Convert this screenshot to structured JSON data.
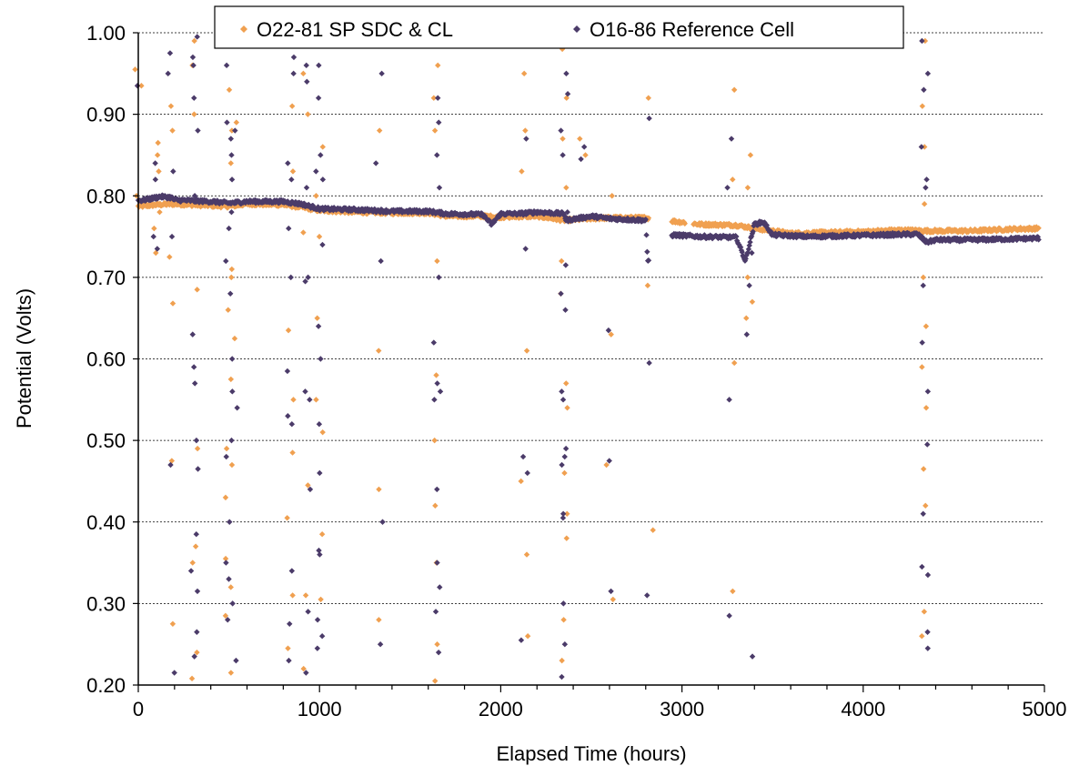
{
  "chart_data": {
    "type": "scatter",
    "title": "",
    "xlabel": "Elapsed Time (hours)",
    "ylabel": "Potential (Volts)",
    "xlim": [
      0,
      5000
    ],
    "ylim": [
      0.2,
      1.0
    ],
    "x_ticks": [
      0,
      1000,
      2000,
      3000,
      4000,
      5000
    ],
    "x_tick_labels": [
      "0",
      "1000",
      "2000",
      "3000",
      "4000",
      "5000"
    ],
    "y_ticks": [
      0.2,
      0.3,
      0.4,
      0.5,
      0.6,
      0.7,
      0.8,
      0.9,
      1.0
    ],
    "y_tick_labels": [
      "0.20",
      "0.30",
      "0.40",
      "0.50",
      "0.60",
      "0.70",
      "0.80",
      "0.90",
      "1.00"
    ],
    "grid": "horizontal dotted",
    "legend_position": "top",
    "series": [
      {
        "name": "O22-81 SP SDC & CL",
        "color": "#f0a050",
        "marker": "diamond",
        "baseline": [
          [
            0,
            0.787
          ],
          [
            100,
            0.789
          ],
          [
            200,
            0.79
          ],
          [
            300,
            0.789
          ],
          [
            400,
            0.788
          ],
          [
            500,
            0.787
          ],
          [
            600,
            0.79
          ],
          [
            800,
            0.789
          ],
          [
            900,
            0.786
          ],
          [
            1000,
            0.782
          ],
          [
            1200,
            0.78
          ],
          [
            1400,
            0.779
          ],
          [
            1600,
            0.779
          ],
          [
            1700,
            0.775
          ],
          [
            1900,
            0.775
          ],
          [
            2000,
            0.774
          ],
          [
            2200,
            0.775
          ],
          [
            2350,
            0.77
          ],
          [
            2500,
            0.772
          ],
          [
            2600,
            0.773
          ],
          [
            2800,
            0.773
          ],
          [
            2950,
            0.769
          ],
          [
            3100,
            0.765
          ],
          [
            3300,
            0.764
          ],
          [
            3400,
            0.76
          ],
          [
            3600,
            0.754
          ],
          [
            3800,
            0.755
          ],
          [
            4000,
            0.756
          ],
          [
            4200,
            0.758
          ],
          [
            4350,
            0.757
          ],
          [
            4600,
            0.757
          ],
          [
            4800,
            0.759
          ],
          [
            4970,
            0.76
          ]
        ],
        "gaps": [
          [
            2820,
            2940
          ],
          [
            3020,
            3060
          ]
        ],
        "spikes": [
          {
            "x": 0,
            "values": [
              0.955,
              0.935,
              0.8
            ]
          },
          {
            "x": 100,
            "values": [
              0.865,
              0.85,
              0.83,
              0.78,
              0.76,
              0.73
            ]
          },
          {
            "x": 180,
            "values": [
              0.91,
              0.88,
              0.725,
              0.668,
              0.475,
              0.275
            ]
          },
          {
            "x": 310,
            "values": [
              0.99,
              0.96,
              0.9,
              0.79,
              0.685,
              0.49,
              0.37,
              0.35,
              0.24,
              0.208
            ]
          },
          {
            "x": 500,
            "values": [
              0.99,
              0.93,
              0.88,
              0.84,
              0.7,
              0.66,
              0.575,
              0.49,
              0.43,
              0.355,
              0.285
            ]
          },
          {
            "x": 530,
            "values": [
              0.89,
              0.71,
              0.625,
              0.47,
              0.32,
              0.215
            ]
          },
          {
            "x": 840,
            "values": [
              0.91,
              0.83,
              0.635,
              0.55,
              0.485,
              0.405,
              0.31,
              0.245
            ]
          },
          {
            "x": 930,
            "values": [
              0.95,
              0.9,
              0.755,
              0.445,
              0.31,
              0.22
            ]
          },
          {
            "x": 1000,
            "values": [
              0.86,
              0.8,
              0.75,
              0.65,
              0.55,
              0.51,
              0.385,
              0.305
            ]
          },
          {
            "x": 1330,
            "values": [
              0.88,
              0.61,
              0.44,
              0.28
            ]
          },
          {
            "x": 1650,
            "values": [
              0.96,
              0.92,
              0.88,
              0.72,
              0.58,
              0.5,
              0.42,
              0.35,
              0.25,
              0.205
            ]
          },
          {
            "x": 2130,
            "values": [
              0.95,
              0.88,
              0.83,
              0.61,
              0.45,
              0.36,
              0.26
            ]
          },
          {
            "x": 2350,
            "values": [
              0.98,
              0.92,
              0.87,
              0.81,
              0.72,
              0.68,
              0.57,
              0.54,
              0.46,
              0.41,
              0.38,
              0.28,
              0.23
            ]
          },
          {
            "x": 2450,
            "values": [
              0.87,
              0.85
            ]
          },
          {
            "x": 2600,
            "values": [
              0.8,
              0.63,
              0.47,
              0.305
            ]
          },
          {
            "x": 2820,
            "values": [
              0.92,
              0.69,
              0.39
            ]
          },
          {
            "x": 3270,
            "values": [
              0.93,
              0.82,
              0.595,
              0.315
            ]
          },
          {
            "x": 3370,
            "values": [
              0.85,
              0.81,
              0.7,
              0.67,
              0.65
            ]
          },
          {
            "x": 4340,
            "values": [
              0.99,
              0.91,
              0.86,
              0.79,
              0.7,
              0.64,
              0.59,
              0.54,
              0.465,
              0.42,
              0.29,
              0.26
            ]
          }
        ]
      },
      {
        "name": "O16-86 Reference Cell",
        "color": "#4b3b69",
        "marker": "diamond",
        "baseline": [
          [
            0,
            0.794
          ],
          [
            60,
            0.796
          ],
          [
            120,
            0.799
          ],
          [
            180,
            0.798
          ],
          [
            200,
            0.795
          ],
          [
            300,
            0.794
          ],
          [
            400,
            0.793
          ],
          [
            500,
            0.791
          ],
          [
            600,
            0.793
          ],
          [
            800,
            0.793
          ],
          [
            900,
            0.79
          ],
          [
            1000,
            0.784
          ],
          [
            1200,
            0.783
          ],
          [
            1400,
            0.781
          ],
          [
            1600,
            0.781
          ],
          [
            1700,
            0.778
          ],
          [
            1900,
            0.777
          ],
          [
            1950,
            0.765
          ],
          [
            2000,
            0.778
          ],
          [
            2100,
            0.778
          ],
          [
            2200,
            0.78
          ],
          [
            2350,
            0.778
          ],
          [
            2360,
            0.77
          ],
          [
            2500,
            0.775
          ],
          [
            2600,
            0.772
          ],
          [
            2800,
            0.77
          ],
          [
            2810,
            0.72
          ],
          [
            2950,
            0.752
          ],
          [
            3100,
            0.75
          ],
          [
            3300,
            0.749
          ],
          [
            3350,
            0.72
          ],
          [
            3400,
            0.765
          ],
          [
            3450,
            0.768
          ],
          [
            3500,
            0.752
          ],
          [
            3700,
            0.75
          ],
          [
            3900,
            0.751
          ],
          [
            4100,
            0.752
          ],
          [
            4300,
            0.753
          ],
          [
            4350,
            0.743
          ],
          [
            4400,
            0.746
          ],
          [
            4600,
            0.746
          ],
          [
            4800,
            0.747
          ],
          [
            4970,
            0.748
          ]
        ],
        "gaps": [
          [
            2820,
            2940
          ]
        ],
        "spikes": [
          {
            "x": 0,
            "values": [
              0.935
            ]
          },
          {
            "x": 100,
            "values": [
              0.84,
              0.82,
              0.75,
              0.735
            ]
          },
          {
            "x": 180,
            "values": [
              0.975,
              0.95,
              0.83,
              0.75,
              0.47,
              0.215
            ]
          },
          {
            "x": 310,
            "values": [
              0.995,
              0.97,
              0.96,
              0.92,
              0.88,
              0.8,
              0.63,
              0.59,
              0.57,
              0.5,
              0.465,
              0.385,
              0.34,
              0.315,
              0.265,
              0.235
            ]
          },
          {
            "x": 500,
            "values": [
              0.99,
              0.96,
              0.89,
              0.87,
              0.85,
              0.82,
              0.78,
              0.76,
              0.72,
              0.68,
              0.6,
              0.56,
              0.5,
              0.48,
              0.4,
              0.35,
              0.33,
              0.28
            ]
          },
          {
            "x": 530,
            "values": [
              0.88,
              0.54,
              0.3,
              0.23
            ]
          },
          {
            "x": 840,
            "values": [
              0.97,
              0.95,
              0.84,
              0.82,
              0.76,
              0.7,
              0.585,
              0.53,
              0.52,
              0.34,
              0.275,
              0.23
            ]
          },
          {
            "x": 930,
            "values": [
              0.96,
              0.94,
              0.81,
              0.7,
              0.695,
              0.56,
              0.55,
              0.44,
              0.29,
              0.215
            ]
          },
          {
            "x": 1000,
            "values": [
              0.96,
              0.92,
              0.85,
              0.83,
              0.82,
              0.74,
              0.64,
              0.6,
              0.52,
              0.46,
              0.365,
              0.36,
              0.28,
              0.26,
              0.245
            ]
          },
          {
            "x": 1330,
            "values": [
              0.95,
              0.84,
              0.72,
              0.4,
              0.25
            ]
          },
          {
            "x": 1650,
            "values": [
              0.99,
              0.92,
              0.89,
              0.85,
              0.81,
              0.7,
              0.62,
              0.57,
              0.56,
              0.55,
              0.44,
              0.35,
              0.32,
              0.29,
              0.24
            ]
          },
          {
            "x": 2130,
            "values": [
              0.87,
              0.735,
              0.48,
              0.46,
              0.255
            ]
          },
          {
            "x": 2350,
            "values": [
              0.995,
              0.95,
              0.925,
              0.88,
              0.85,
              0.78,
              0.715,
              0.68,
              0.66,
              0.56,
              0.55,
              0.49,
              0.48,
              0.47,
              0.41,
              0.405,
              0.3,
              0.25,
              0.21
            ]
          },
          {
            "x": 2450,
            "values": [
              0.86,
              0.845
            ]
          },
          {
            "x": 2600,
            "values": [
              0.635,
              0.475,
              0.315
            ]
          },
          {
            "x": 2820,
            "values": [
              0.895,
              0.595,
              0.31
            ]
          },
          {
            "x": 3270,
            "values": [
              0.87,
              0.81,
              0.55,
              0.285
            ]
          },
          {
            "x": 3370,
            "values": [
              0.73,
              0.69,
              0.63,
              0.235
            ]
          },
          {
            "x": 4340,
            "values": [
              0.99,
              0.95,
              0.93,
              0.86,
              0.82,
              0.81,
              0.69,
              0.62,
              0.56,
              0.495,
              0.41,
              0.345,
              0.335,
              0.265,
              0.245
            ]
          }
        ]
      }
    ]
  }
}
